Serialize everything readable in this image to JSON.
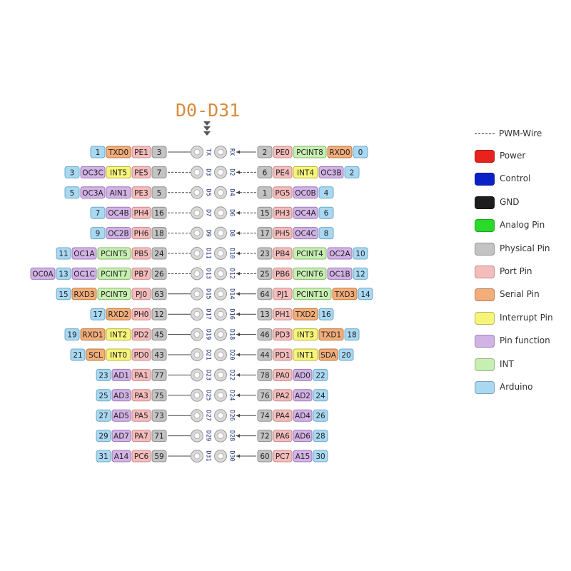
{
  "title": "D0-D31",
  "legend": {
    "pwm_label": "PWM-Wire",
    "items": [
      {
        "key": "power",
        "label": "Power",
        "color": "#e8231e"
      },
      {
        "key": "control",
        "label": "Control",
        "color": "#0a20c8"
      },
      {
        "key": "gnd",
        "label": "GND",
        "color": "#1d1d1d"
      },
      {
        "key": "analog",
        "label": "Analog Pin",
        "color": "#2ad92a"
      },
      {
        "key": "physical",
        "label": "Physical Pin",
        "color": "#c3c3c3"
      },
      {
        "key": "port",
        "label": "Port Pin",
        "color": "#f5bcbc"
      },
      {
        "key": "serial",
        "label": "Serial Pin",
        "color": "#f2ad7a"
      },
      {
        "key": "interrupt",
        "label": "Interrupt Pin",
        "color": "#f6f57a"
      },
      {
        "key": "function",
        "label": "Pin function",
        "color": "#d2b3e6"
      },
      {
        "key": "int",
        "label": "INT",
        "color": "#c7efb2"
      },
      {
        "key": "arduino",
        "label": "Arduino",
        "color": "#a9d8f2"
      }
    ]
  },
  "pins": [
    {
      "left": [
        [
          "arduino",
          "1"
        ],
        [
          "serial",
          "TXD0"
        ],
        [
          "port",
          "PE1"
        ],
        [
          "physical",
          "3"
        ]
      ],
      "left_label": "TX",
      "right_label": "RX",
      "right": [
        [
          "physical",
          "2"
        ],
        [
          "port",
          "PE0"
        ],
        [
          "int",
          "PCINT8"
        ],
        [
          "serial",
          "RXD0"
        ],
        [
          "arduino",
          "0"
        ]
      ],
      "pwm_left": false,
      "pwm_right": false
    },
    {
      "left": [
        [
          "arduino",
          "3"
        ],
        [
          "function",
          "OC3C"
        ],
        [
          "interrupt",
          "INT5"
        ],
        [
          "port",
          "PE5"
        ],
        [
          "physical",
          "7"
        ]
      ],
      "left_label": "D3",
      "right_label": "D2",
      "right": [
        [
          "physical",
          "6"
        ],
        [
          "port",
          "PE4"
        ],
        [
          "interrupt",
          "INT4"
        ],
        [
          "function",
          "OC3B"
        ],
        [
          "arduino",
          "2"
        ]
      ],
      "pwm_left": true,
      "pwm_right": true
    },
    {
      "left": [
        [
          "arduino",
          "5"
        ],
        [
          "function",
          "OC3A"
        ],
        [
          "function",
          "AIN1"
        ],
        [
          "port",
          "PE3"
        ],
        [
          "physical",
          "5"
        ]
      ],
      "left_label": "D5",
      "right_label": "D4",
      "right": [
        [
          "physical",
          "1"
        ],
        [
          "port",
          "PG5"
        ],
        [
          "function",
          "OC0B"
        ],
        [
          "arduino",
          "4"
        ]
      ],
      "pwm_left": true,
      "pwm_right": true
    },
    {
      "left": [
        [
          "arduino",
          "7"
        ],
        [
          "function",
          "OC4B"
        ],
        [
          "port",
          "PH4"
        ],
        [
          "physical",
          "16"
        ]
      ],
      "left_label": "D7",
      "right_label": "D6",
      "right": [
        [
          "physical",
          "15"
        ],
        [
          "port",
          "PH3"
        ],
        [
          "function",
          "OC4A"
        ],
        [
          "arduino",
          "6"
        ]
      ],
      "pwm_left": true,
      "pwm_right": true
    },
    {
      "left": [
        [
          "arduino",
          "9"
        ],
        [
          "function",
          "OC2B"
        ],
        [
          "port",
          "PH6"
        ],
        [
          "physical",
          "18"
        ]
      ],
      "left_label": "D9",
      "right_label": "D8",
      "right": [
        [
          "physical",
          "17"
        ],
        [
          "port",
          "PH5"
        ],
        [
          "function",
          "OC4C"
        ],
        [
          "arduino",
          "8"
        ]
      ],
      "pwm_left": true,
      "pwm_right": true
    },
    {
      "left": [
        [
          "arduino",
          "11"
        ],
        [
          "function",
          "OC1A"
        ],
        [
          "int",
          "PCINT5"
        ],
        [
          "port",
          "PB5"
        ],
        [
          "physical",
          "24"
        ]
      ],
      "left_label": "D11",
      "right_label": "D10",
      "right": [
        [
          "physical",
          "23"
        ],
        [
          "port",
          "PB4"
        ],
        [
          "int",
          "PCINT4"
        ],
        [
          "function",
          "OC2A"
        ],
        [
          "arduino",
          "10"
        ]
      ],
      "pwm_left": true,
      "pwm_right": true
    },
    {
      "left": [
        [
          "function",
          "OC0A"
        ],
        [
          "arduino",
          "13"
        ],
        [
          "function",
          "OC1C"
        ],
        [
          "int",
          "PCINT7"
        ],
        [
          "port",
          "PB7"
        ],
        [
          "physical",
          "26"
        ]
      ],
      "left_label": "D13",
      "right_label": "D12",
      "right": [
        [
          "physical",
          "25"
        ],
        [
          "port",
          "PB6"
        ],
        [
          "int",
          "PCINT6"
        ],
        [
          "function",
          "OC1B"
        ],
        [
          "arduino",
          "12"
        ]
      ],
      "pwm_left": true,
      "pwm_right": true
    },
    {
      "left": [
        [
          "arduino",
          "15"
        ],
        [
          "serial",
          "RXD3"
        ],
        [
          "int",
          "PCINT9"
        ],
        [
          "port",
          "PJ0"
        ],
        [
          "physical",
          "63"
        ]
      ],
      "left_label": "D15",
      "right_label": "D14",
      "right": [
        [
          "physical",
          "64"
        ],
        [
          "port",
          "PJ1"
        ],
        [
          "int",
          "PCINT10"
        ],
        [
          "serial",
          "TXD3"
        ],
        [
          "arduino",
          "14"
        ]
      ],
      "pwm_left": false,
      "pwm_right": false
    },
    {
      "left": [
        [
          "arduino",
          "17"
        ],
        [
          "serial",
          "RXD2"
        ],
        [
          "port",
          "PH0"
        ],
        [
          "physical",
          "12"
        ]
      ],
      "left_label": "D17",
      "right_label": "D16",
      "right": [
        [
          "physical",
          "13"
        ],
        [
          "port",
          "PH1"
        ],
        [
          "serial",
          "TXD2"
        ],
        [
          "arduino",
          "16"
        ]
      ],
      "pwm_left": false,
      "pwm_right": false
    },
    {
      "left": [
        [
          "arduino",
          "19"
        ],
        [
          "serial",
          "RXD1"
        ],
        [
          "interrupt",
          "INT2"
        ],
        [
          "port",
          "PD2"
        ],
        [
          "physical",
          "45"
        ]
      ],
      "left_label": "D19",
      "right_label": "D18",
      "right": [
        [
          "physical",
          "46"
        ],
        [
          "port",
          "PD3"
        ],
        [
          "interrupt",
          "INT3"
        ],
        [
          "serial",
          "TXD1"
        ],
        [
          "arduino",
          "18"
        ]
      ],
      "pwm_left": false,
      "pwm_right": false
    },
    {
      "left": [
        [
          "arduino",
          "21"
        ],
        [
          "serial",
          "SCL"
        ],
        [
          "interrupt",
          "INT0"
        ],
        [
          "port",
          "PD0"
        ],
        [
          "physical",
          "43"
        ]
      ],
      "left_label": "D21",
      "right_label": "D20",
      "right": [
        [
          "physical",
          "44"
        ],
        [
          "port",
          "PD1"
        ],
        [
          "interrupt",
          "INT1"
        ],
        [
          "serial",
          "SDA"
        ],
        [
          "arduino",
          "20"
        ]
      ],
      "pwm_left": false,
      "pwm_right": false
    },
    {
      "left": [
        [
          "arduino",
          "23"
        ],
        [
          "function",
          "AD1"
        ],
        [
          "port",
          "PA1"
        ],
        [
          "physical",
          "77"
        ]
      ],
      "left_label": "D23",
      "right_label": "D22",
      "right": [
        [
          "physical",
          "78"
        ],
        [
          "port",
          "PA0"
        ],
        [
          "function",
          "AD0"
        ],
        [
          "arduino",
          "22"
        ]
      ],
      "pwm_left": false,
      "pwm_right": false
    },
    {
      "left": [
        [
          "arduino",
          "25"
        ],
        [
          "function",
          "AD3"
        ],
        [
          "port",
          "PA3"
        ],
        [
          "physical",
          "75"
        ]
      ],
      "left_label": "D25",
      "right_label": "D24",
      "right": [
        [
          "physical",
          "76"
        ],
        [
          "port",
          "PA2"
        ],
        [
          "function",
          "AD2"
        ],
        [
          "arduino",
          "24"
        ]
      ],
      "pwm_left": false,
      "pwm_right": false
    },
    {
      "left": [
        [
          "arduino",
          "27"
        ],
        [
          "function",
          "AD5"
        ],
        [
          "port",
          "PA5"
        ],
        [
          "physical",
          "73"
        ]
      ],
      "left_label": "D27",
      "right_label": "D26",
      "right": [
        [
          "physical",
          "74"
        ],
        [
          "port",
          "PA4"
        ],
        [
          "function",
          "AD4"
        ],
        [
          "arduino",
          "26"
        ]
      ],
      "pwm_left": false,
      "pwm_right": false
    },
    {
      "left": [
        [
          "arduino",
          "29"
        ],
        [
          "function",
          "AD7"
        ],
        [
          "port",
          "PA7"
        ],
        [
          "physical",
          "71"
        ]
      ],
      "left_label": "D29",
      "right_label": "D28",
      "right": [
        [
          "physical",
          "72"
        ],
        [
          "port",
          "PA6"
        ],
        [
          "function",
          "AD6"
        ],
        [
          "arduino",
          "28"
        ]
      ],
      "pwm_left": false,
      "pwm_right": false
    },
    {
      "left": [
        [
          "arduino",
          "31"
        ],
        [
          "function",
          "A14"
        ],
        [
          "port",
          "PC6"
        ],
        [
          "physical",
          "59"
        ]
      ],
      "left_label": "D31",
      "right_label": "D30",
      "right": [
        [
          "physical",
          "60"
        ],
        [
          "port",
          "PC7"
        ],
        [
          "function",
          "A15"
        ],
        [
          "arduino",
          "30"
        ]
      ],
      "pwm_left": false,
      "pwm_right": false
    }
  ]
}
